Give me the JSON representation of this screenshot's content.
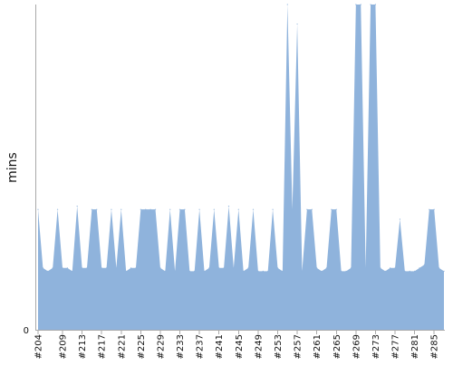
{
  "chart_data": {
    "type": "area",
    "title": "",
    "xlabel": "",
    "ylabel": "mins",
    "y_tick_labels": [
      "0"
    ],
    "grid": false,
    "legend": "none",
    "color": "#8fb3dc",
    "ylim": [
      0,
      100
    ],
    "x": [
      204,
      205,
      206,
      207,
      208,
      209,
      210,
      211,
      212,
      213,
      214,
      215,
      216,
      217,
      218,
      219,
      220,
      221,
      222,
      223,
      224,
      225,
      226,
      227,
      228,
      229,
      230,
      231,
      232,
      233,
      234,
      235,
      236,
      237,
      238,
      239,
      240,
      241,
      242,
      243,
      244,
      245,
      246,
      247,
      248,
      249,
      250,
      251,
      252,
      253,
      254,
      255,
      256,
      257,
      258,
      259,
      260,
      261,
      262,
      263,
      264,
      265,
      266,
      267,
      268,
      269,
      270,
      271,
      272,
      273,
      274,
      275,
      276,
      277,
      278,
      279,
      280,
      281,
      282,
      283,
      284,
      285,
      286,
      287
    ],
    "values": [
      37,
      19,
      18,
      19,
      37,
      19,
      19,
      18,
      38,
      19,
      19,
      37,
      37,
      19,
      19,
      37,
      19,
      37,
      18,
      19,
      19,
      37,
      37,
      37,
      37,
      19,
      18,
      37,
      18,
      37,
      37,
      18,
      18,
      37,
      18,
      19,
      37,
      19,
      19,
      38,
      19,
      37,
      18,
      19,
      37,
      18,
      18,
      18,
      37,
      19,
      18,
      100,
      37,
      94,
      18,
      37,
      37,
      19,
      18,
      19,
      37,
      37,
      18,
      18,
      19,
      100,
      100,
      19,
      100,
      100,
      19,
      18,
      19,
      19,
      34,
      18,
      18,
      18,
      19,
      20,
      37,
      37,
      19,
      18
    ],
    "x_tick_labels": [
      "#204",
      "#209",
      "#213",
      "#217",
      "#221",
      "#225",
      "#229",
      "#233",
      "#237",
      "#241",
      "#245",
      "#249",
      "#253",
      "#257",
      "#261",
      "#265",
      "#269",
      "#273",
      "#277",
      "#281",
      "#285"
    ]
  }
}
